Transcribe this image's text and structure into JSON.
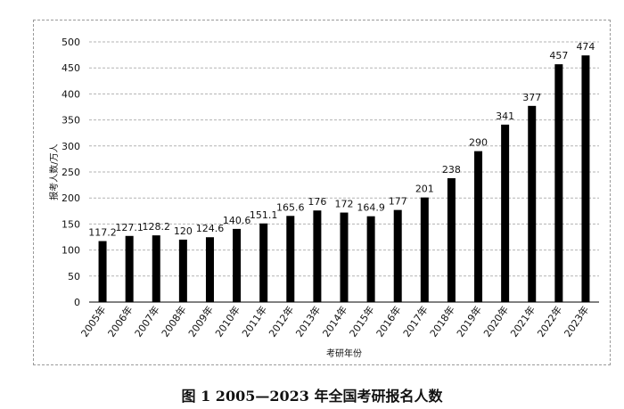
{
  "caption": "图 1   2005—2023 年全国考研报名人数",
  "chart_data": {
    "type": "bar",
    "xlabel": "考研年份",
    "ylabel": "报考人数/万人",
    "ylim": [
      0,
      500
    ],
    "yticks": [
      0,
      50,
      100,
      150,
      200,
      250,
      300,
      350,
      400,
      450,
      500
    ],
    "grid": true,
    "bar_color": "#000000",
    "categories": [
      "2005年",
      "2006年",
      "2007年",
      "2008年",
      "2009年",
      "2010年",
      "2011年",
      "2012年",
      "2013年",
      "2014年",
      "2015年",
      "2016年",
      "2017年",
      "2018年",
      "2019年",
      "2020年",
      "2021年",
      "2022年",
      "2023年"
    ],
    "values": [
      117.2,
      127.1,
      128.2,
      120,
      124.6,
      140.6,
      151.1,
      165.6,
      176,
      172,
      164.9,
      177,
      201,
      238,
      290,
      341,
      377,
      457,
      474
    ],
    "data_labels": [
      "117.2",
      "127.1",
      "128.2",
      "120",
      "124.6",
      "140.6",
      "151.1",
      "165.6",
      "176",
      "172",
      "164.9",
      "177",
      "201",
      "238",
      "290",
      "341",
      "377",
      "457",
      "474"
    ]
  }
}
